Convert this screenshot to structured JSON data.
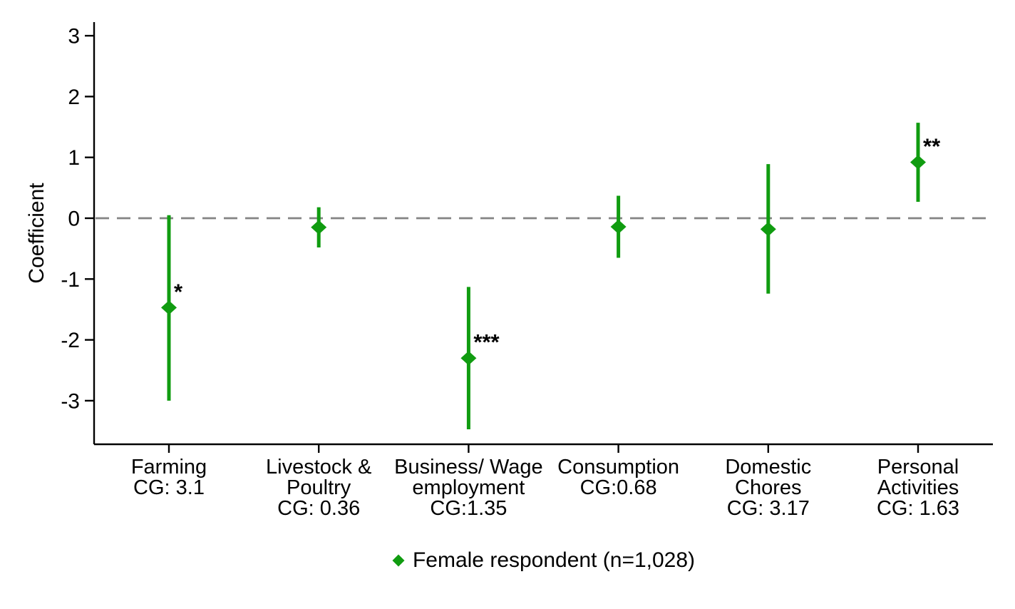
{
  "figure": {
    "background": "#ffffff"
  },
  "chart_data": {
    "type": "scatter",
    "subtype": "coefficient-plot-with-confidence-intervals",
    "title": "",
    "xlabel": "",
    "ylabel": "Coefficient",
    "ylim": [
      -3.7,
      3.25
    ],
    "yticks": [
      3,
      2,
      1,
      0,
      -1,
      -2,
      -3
    ],
    "grid": false,
    "zero_line": {
      "value": 0,
      "style": "dashed",
      "color": "#848484"
    },
    "marker": {
      "shape": "diamond",
      "color": "#109C10"
    },
    "axis_color": "#000000",
    "categories": [
      {
        "label_lines": [
          "Farming",
          "CG: 3.1"
        ],
        "estimate": -1.47,
        "ci_low": -3.0,
        "ci_high": 0.05,
        "significance": "*"
      },
      {
        "label_lines": [
          "Livestock &",
          "Poultry",
          "CG: 0.36"
        ],
        "estimate": -0.15,
        "ci_low": -0.48,
        "ci_high": 0.18,
        "significance": ""
      },
      {
        "label_lines": [
          "Business/ Wage",
          "employment",
          "CG:1.35"
        ],
        "estimate": -2.3,
        "ci_low": -3.47,
        "ci_high": -1.13,
        "significance": "***"
      },
      {
        "label_lines": [
          "Consumption",
          "CG:0.68"
        ],
        "estimate": -0.14,
        "ci_low": -0.65,
        "ci_high": 0.37,
        "significance": ""
      },
      {
        "label_lines": [
          "Domestic",
          "Chores",
          "CG: 3.17"
        ],
        "estimate": -0.18,
        "ci_low": -1.24,
        "ci_high": 0.89,
        "significance": ""
      },
      {
        "label_lines": [
          "Personal",
          "Activities",
          "CG: 1.63"
        ],
        "estimate": 0.92,
        "ci_low": 0.27,
        "ci_high": 1.57,
        "significance": "**"
      }
    ],
    "legend": {
      "label": "Female respondent (n=1,028)",
      "marker": "diamond",
      "color": "#109C10",
      "position": "bottom-center"
    }
  }
}
